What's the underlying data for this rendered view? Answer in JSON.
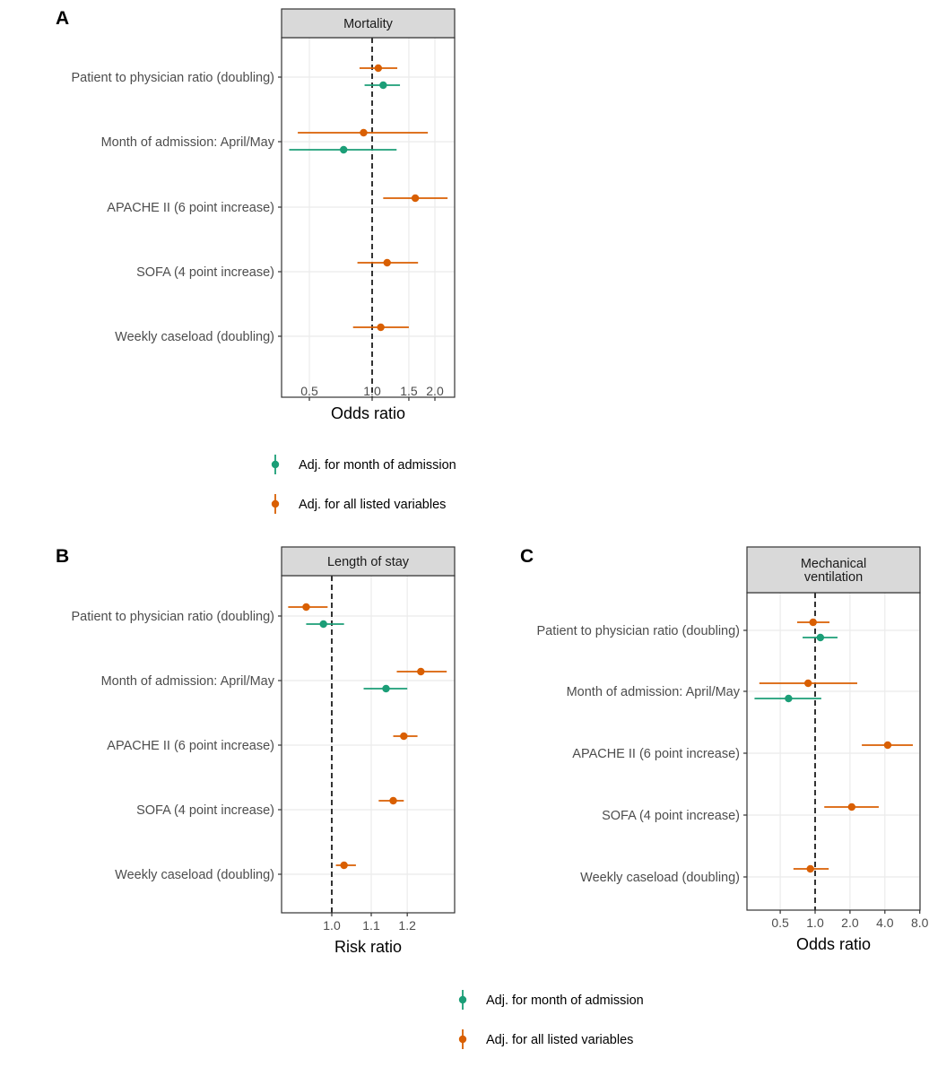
{
  "colors": {
    "month_adjusted": "#1b9e77",
    "all_adjusted": "#d95f02",
    "strip_fill": "#d9d9d9",
    "grid": "#ebebeb",
    "axis": "#333333"
  },
  "chart_data": [
    {
      "panel": "A",
      "type": "scatter",
      "subtype": "forest-plot",
      "title": "Mortality",
      "xlabel": "Odds ratio",
      "xscale": "log",
      "xticks": [
        0.5,
        1.0,
        1.5,
        2.0
      ],
      "xtick_labels": [
        "0.5",
        "1.0",
        "1.5",
        "2.0"
      ],
      "reference_line": 1.0,
      "xlim": [
        0.38,
        2.45
      ],
      "categories": [
        "Patient to physician ratio (doubling)",
        "Month of admission: April/May",
        "APACHE II (6 point increase)",
        "SOFA (4 point increase)",
        "Weekly caseload (doubling)"
      ],
      "series": [
        {
          "name": "Adj. for all listed variables",
          "color_key": "all_adjusted",
          "estimates": [
            1.07,
            0.91,
            1.61,
            1.18,
            1.1
          ],
          "lower": [
            0.87,
            0.44,
            1.13,
            0.85,
            0.81
          ],
          "upper": [
            1.32,
            1.85,
            2.3,
            1.66,
            1.5
          ]
        },
        {
          "name": "Adj. for month of admission",
          "color_key": "month_adjusted",
          "estimates": [
            1.13,
            0.73,
            null,
            null,
            null
          ],
          "lower": [
            0.92,
            0.4,
            null,
            null,
            null
          ],
          "upper": [
            1.36,
            1.31,
            null,
            null,
            null
          ]
        }
      ]
    },
    {
      "panel": "B",
      "type": "scatter",
      "subtype": "forest-plot",
      "title": "Length of stay",
      "xlabel": "Risk ratio",
      "xscale": "log",
      "xticks": [
        1.0,
        1.1,
        1.2
      ],
      "xtick_labels": [
        "1.0",
        "1.1",
        "1.2"
      ],
      "reference_line": 1.0,
      "xlim": [
        0.885,
        1.345
      ],
      "categories": [
        "Patient to physician ratio (doubling)",
        "Month of admission: April/May",
        "APACHE II (6 point increase)",
        "SOFA (4 point increase)",
        "Weekly caseload (doubling)"
      ],
      "series": [
        {
          "name": "Adj. for all listed variables",
          "color_key": "all_adjusted",
          "estimates": [
            0.94,
            1.24,
            1.19,
            1.16,
            1.03
          ],
          "lower": [
            0.9,
            1.17,
            1.16,
            1.12,
            1.01
          ],
          "upper": [
            0.99,
            1.32,
            1.23,
            1.19,
            1.06
          ]
        },
        {
          "name": "Adj. for month of admission",
          "color_key": "month_adjusted",
          "estimates": [
            0.98,
            1.14,
            null,
            null,
            null
          ],
          "lower": [
            0.94,
            1.08,
            null,
            null,
            null
          ],
          "upper": [
            1.03,
            1.2,
            null,
            null,
            null
          ]
        }
      ]
    },
    {
      "panel": "C",
      "type": "scatter",
      "subtype": "forest-plot",
      "title": "Mechanical\nventilation",
      "xlabel": "Odds ratio",
      "xscale": "log",
      "xticks": [
        0.5,
        1.0,
        2.0,
        4.0,
        8.0
      ],
      "xtick_labels": [
        "0.5",
        "1.0",
        "2.0",
        "4.0",
        "8.0"
      ],
      "reference_line": 1.0,
      "xlim": [
        0.255,
        8.0
      ],
      "categories": [
        "Patient to physician ratio (doubling)",
        "Month of admission: April/May",
        "APACHE II (6 point increase)",
        "SOFA (4 point increase)",
        "Weekly caseload (doubling)"
      ],
      "series": [
        {
          "name": "Adj. for all listed variables",
          "color_key": "all_adjusted",
          "estimates": [
            0.96,
            0.87,
            4.23,
            2.07,
            0.91
          ],
          "lower": [
            0.7,
            0.33,
            2.53,
            1.2,
            0.65
          ],
          "upper": [
            1.33,
            2.31,
            6.97,
            3.54,
            1.31
          ]
        },
        {
          "name": "Adj. for month of admission",
          "color_key": "month_adjusted",
          "estimates": [
            1.11,
            0.59,
            null,
            null,
            null
          ],
          "lower": [
            0.78,
            0.3,
            null,
            null,
            null
          ],
          "upper": [
            1.56,
            1.13,
            null,
            null,
            null
          ]
        }
      ]
    }
  ],
  "legends": [
    {
      "position": "below-panel-A",
      "entries": [
        {
          "label": "Adj. for month of admission",
          "color_key": "month_adjusted"
        },
        {
          "label": "Adj. for all listed variables",
          "color_key": "all_adjusted"
        }
      ]
    },
    {
      "position": "bottom-center",
      "entries": [
        {
          "label": "Adj. for month of admission",
          "color_key": "month_adjusted"
        },
        {
          "label": "Adj. for all listed variables",
          "color_key": "all_adjusted"
        }
      ]
    }
  ],
  "panel_labels": [
    "A",
    "B",
    "C"
  ]
}
